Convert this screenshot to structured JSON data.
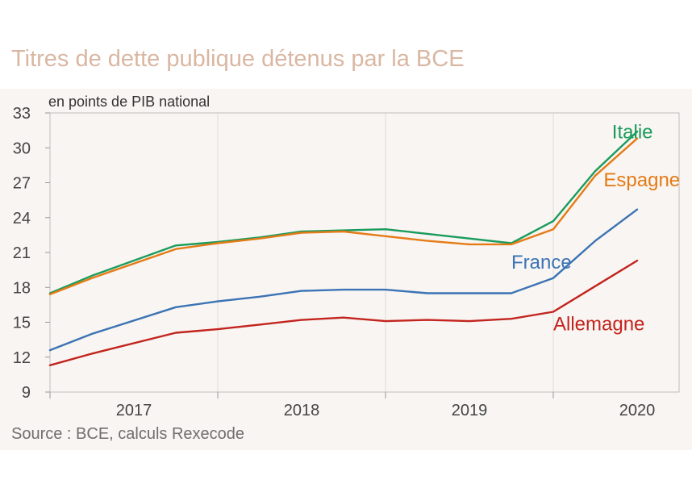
{
  "chart_data": {
    "type": "line",
    "title": "Titres de dette publique détenus par la BCE",
    "ylabel": "en points de PIB national",
    "source": "Source : BCE, calculs Rexecode",
    "ylim": [
      9,
      33
    ],
    "yticks": [
      9,
      12,
      15,
      18,
      21,
      24,
      27,
      30,
      33
    ],
    "xlim": [
      2016.5,
      2020.25
    ],
    "xtick_labels": [
      {
        "label": "2017",
        "x": 2017
      },
      {
        "label": "2018",
        "x": 2018
      },
      {
        "label": "2019",
        "x": 2019
      },
      {
        "label": "2020",
        "x": 2020
      }
    ],
    "grid": "vertical",
    "series": [
      {
        "name": "Italie",
        "color": "#1a9b5c",
        "x": [
          2016.5,
          2016.75,
          2017.25,
          2017.5,
          2017.75,
          2018.0,
          2018.25,
          2018.5,
          2018.75,
          2019.0,
          2019.25,
          2019.5,
          2019.75,
          2020.0
        ],
        "values": [
          17.5,
          19.0,
          21.6,
          21.9,
          22.3,
          22.8,
          22.9,
          23.0,
          22.6,
          22.2,
          21.8,
          23.7,
          28.0,
          31.4
        ]
      },
      {
        "name": "Espagne",
        "color": "#e57b17",
        "x": [
          2016.5,
          2016.75,
          2017.25,
          2017.5,
          2017.75,
          2018.0,
          2018.25,
          2018.5,
          2018.75,
          2019.0,
          2019.25,
          2019.5,
          2019.75,
          2020.0
        ],
        "values": [
          17.4,
          18.8,
          21.3,
          21.8,
          22.2,
          22.7,
          22.8,
          22.4,
          22.0,
          21.7,
          21.7,
          23.0,
          27.6,
          30.8
        ]
      },
      {
        "name": "France",
        "color": "#3b73b4",
        "x": [
          2016.5,
          2016.75,
          2017.25,
          2017.5,
          2017.75,
          2018.0,
          2018.25,
          2018.5,
          2018.75,
          2019.0,
          2019.25,
          2019.5,
          2019.75,
          2020.0
        ],
        "values": [
          12.6,
          14.0,
          16.3,
          16.8,
          17.2,
          17.7,
          17.8,
          17.8,
          17.5,
          17.5,
          17.5,
          18.8,
          22.0,
          24.7
        ]
      },
      {
        "name": "Allemagne",
        "color": "#c3241d",
        "x": [
          2016.5,
          2016.75,
          2017.25,
          2017.5,
          2017.75,
          2018.0,
          2018.25,
          2018.5,
          2018.75,
          2019.0,
          2019.25,
          2019.5,
          2019.75,
          2020.0
        ],
        "values": [
          11.3,
          12.3,
          14.1,
          14.4,
          14.8,
          15.2,
          15.4,
          15.1,
          15.2,
          15.1,
          15.3,
          15.9,
          18.1,
          20.3
        ]
      }
    ],
    "series_label_positions": [
      {
        "name": "Italie",
        "x": 2019.85,
        "y": 30.8
      },
      {
        "name": "Espagne",
        "x": 2019.8,
        "y": 26.7
      },
      {
        "name": "France",
        "x": 2019.25,
        "y": 19.6
      },
      {
        "name": "Allemagne",
        "x": 2019.5,
        "y": 14.3
      }
    ]
  }
}
